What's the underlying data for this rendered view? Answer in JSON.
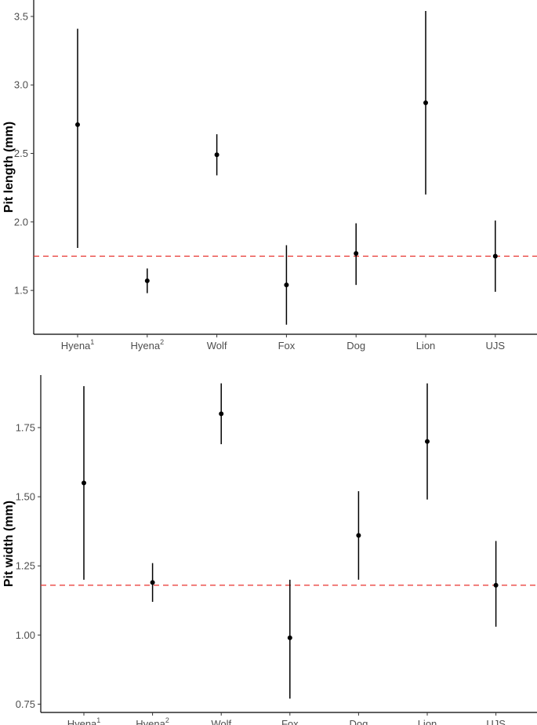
{
  "chart_data": [
    {
      "type": "scatter",
      "subtype": "point-with-error-bars",
      "title": "",
      "xlabel": "",
      "ylabel": "Pit length (mm)",
      "categories": [
        "Hyena",
        "Hyena",
        "Wolf",
        "Fox",
        "Dog",
        "Lion",
        "UJS"
      ],
      "category_superscripts": [
        "1",
        "2",
        "",
        "",
        "",
        "",
        ""
      ],
      "points": [
        {
          "category": "Hyena",
          "y": 2.71,
          "lower": 1.81,
          "upper": 3.41
        },
        {
          "category": "Hyena",
          "y": 1.57,
          "lower": 1.48,
          "upper": 1.66
        },
        {
          "category": "Wolf",
          "y": 2.49,
          "lower": 2.34,
          "upper": 2.64
        },
        {
          "category": "Fox",
          "y": 1.54,
          "lower": 1.25,
          "upper": 1.83
        },
        {
          "category": "Dog",
          "y": 1.77,
          "lower": 1.54,
          "upper": 1.99
        },
        {
          "category": "Lion",
          "y": 2.87,
          "lower": 2.2,
          "upper": 3.54
        },
        {
          "category": "UJS",
          "y": 1.75,
          "lower": 1.49,
          "upper": 2.01
        }
      ],
      "reference_line": {
        "y": 1.75,
        "color": "#e8322e",
        "style": "dashed"
      },
      "ylim": [
        1.18,
        3.62
      ],
      "yticks": [
        1.5,
        2.0,
        2.5,
        3.0,
        3.5
      ],
      "ytick_labels": [
        "1.5",
        "2.0",
        "2.5",
        "3.0",
        "3.5"
      ],
      "grid": false,
      "legend": "none"
    },
    {
      "type": "scatter",
      "subtype": "point-with-error-bars",
      "title": "",
      "xlabel": "",
      "ylabel": "Pit width (mm)",
      "categories": [
        "Hyena",
        "Hyena",
        "Wolf",
        "Fox",
        "Dog",
        "Lion",
        "UJS"
      ],
      "category_superscripts": [
        "1",
        "2",
        "",
        "",
        "",
        "",
        ""
      ],
      "points": [
        {
          "category": "Hyena",
          "y": 1.55,
          "lower": 1.2,
          "upper": 1.9
        },
        {
          "category": "Hyena",
          "y": 1.19,
          "lower": 1.12,
          "upper": 1.26
        },
        {
          "category": "Wolf",
          "y": 1.8,
          "lower": 1.69,
          "upper": 1.91
        },
        {
          "category": "Fox",
          "y": 0.99,
          "lower": 0.77,
          "upper": 1.2
        },
        {
          "category": "Dog",
          "y": 1.36,
          "lower": 1.2,
          "upper": 1.52
        },
        {
          "category": "Lion",
          "y": 1.7,
          "lower": 1.49,
          "upper": 1.91
        },
        {
          "category": "UJS",
          "y": 1.18,
          "lower": 1.03,
          "upper": 1.34
        }
      ],
      "reference_line": {
        "y": 1.18,
        "color": "#e8322e",
        "style": "dashed"
      },
      "ylim": [
        0.72,
        1.94
      ],
      "yticks": [
        0.75,
        1.0,
        1.25,
        1.5,
        1.75
      ],
      "ytick_labels": [
        "0.75",
        "1.00",
        "1.25",
        "1.50",
        "1.75"
      ],
      "grid": false,
      "legend": "none"
    }
  ]
}
